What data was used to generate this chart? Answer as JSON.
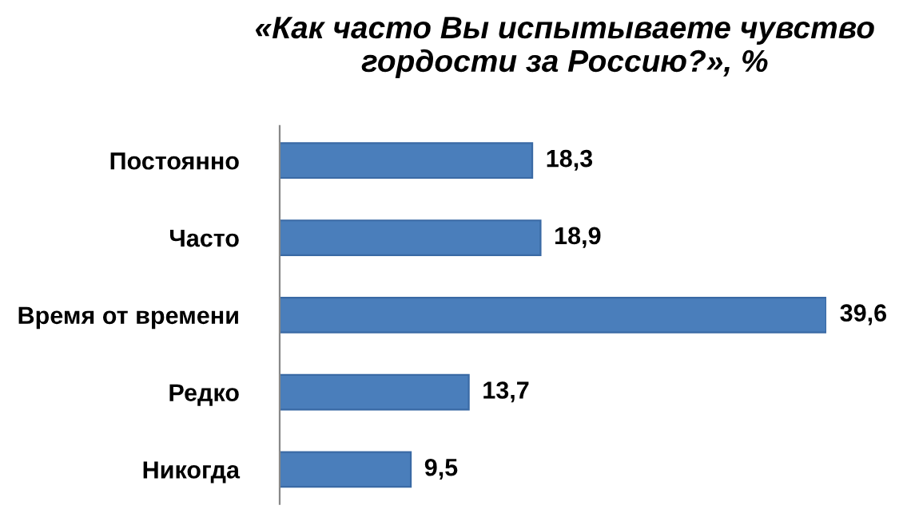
{
  "chart_data": {
    "type": "bar",
    "orientation": "horizontal",
    "title": "«Как часто Вы испытываете чувство гордости за Россию?», %",
    "categories": [
      "Постоянно",
      "Часто",
      "Время от времени",
      "Редко",
      "Никогда"
    ],
    "values": [
      18.3,
      18.9,
      39.6,
      13.7,
      9.5
    ],
    "value_labels": [
      "18,3",
      "18,9",
      "39,6",
      "13,7",
      "9,5"
    ],
    "color": "#4a7ebb",
    "xlim": [
      0,
      39.6
    ]
  }
}
